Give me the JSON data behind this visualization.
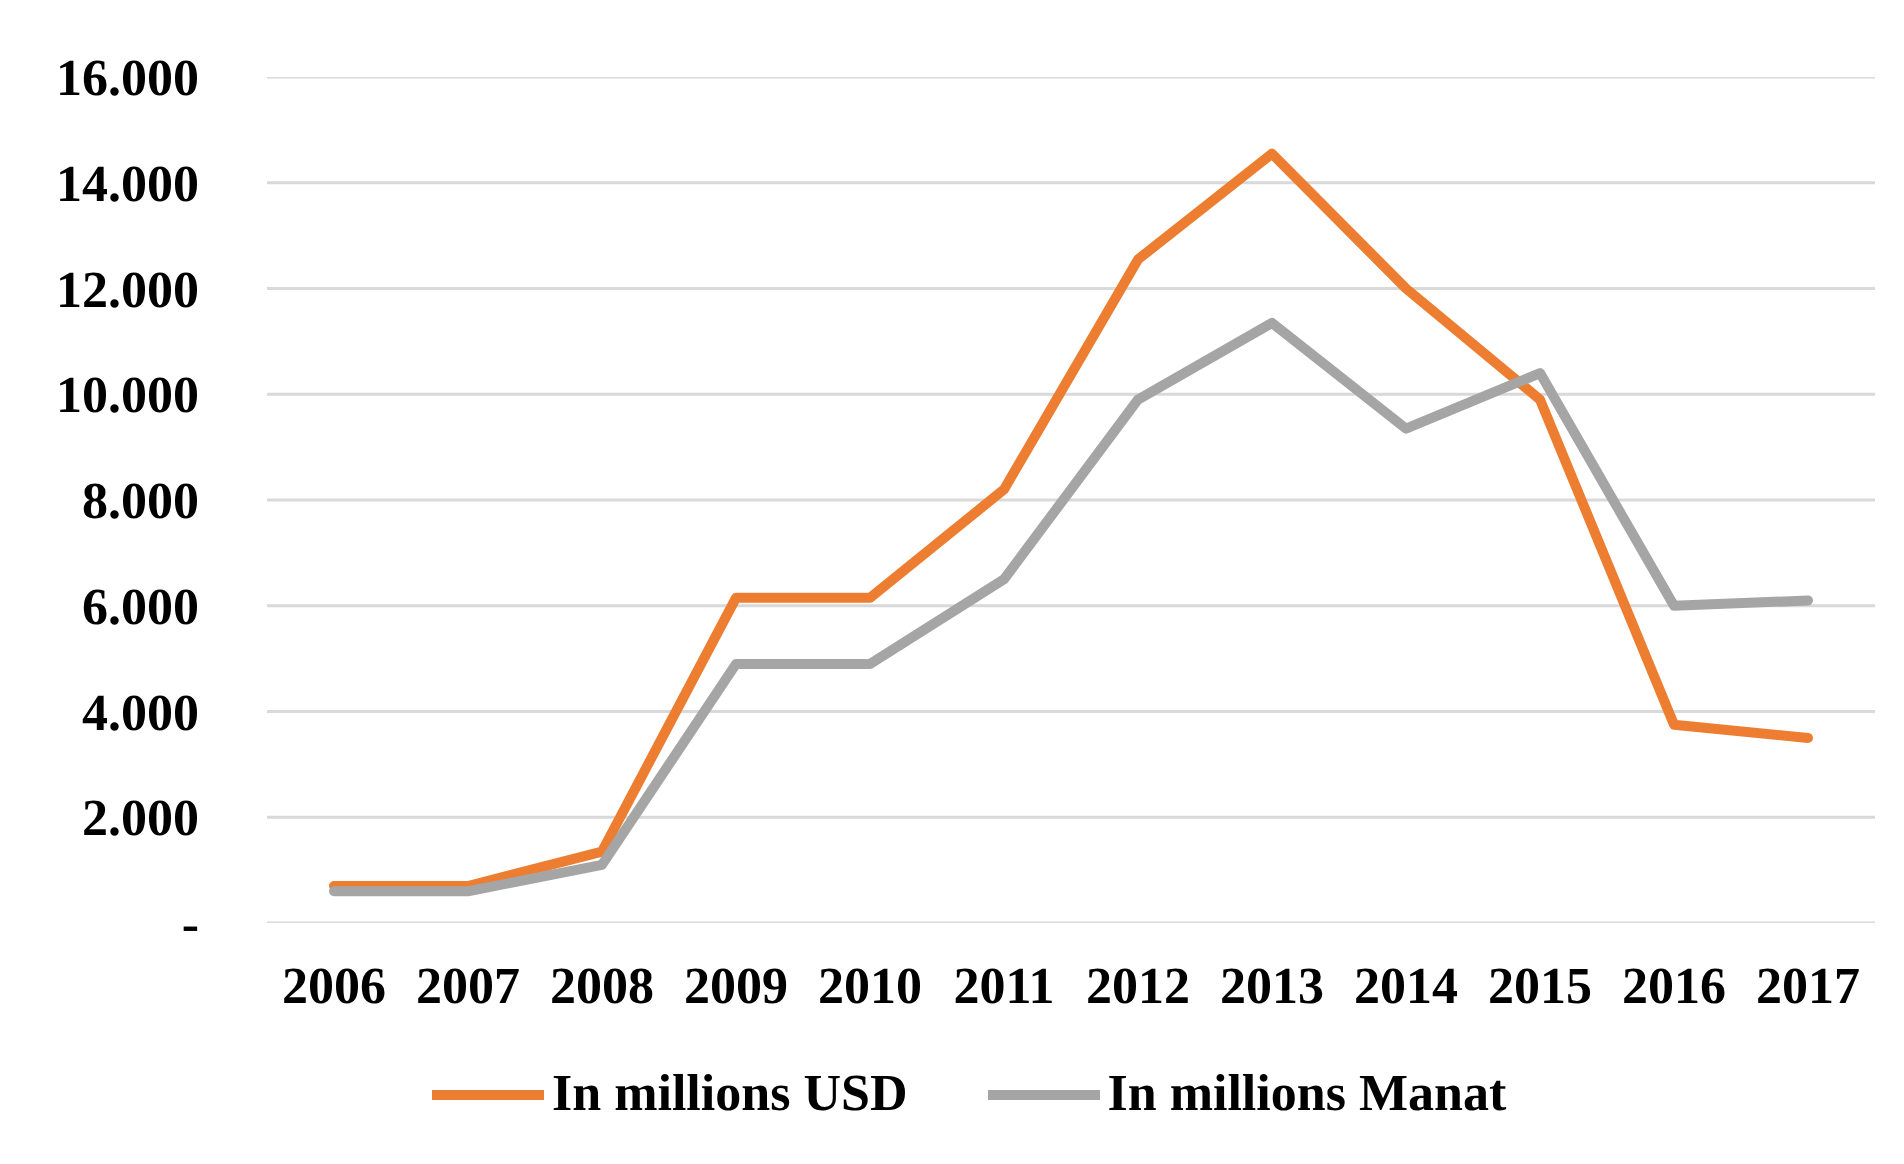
{
  "chart_data": {
    "type": "line",
    "categories": [
      "2006",
      "2007",
      "2008",
      "2009",
      "2010",
      "2011",
      "2012",
      "2013",
      "2014",
      "2015",
      "2016",
      "2017"
    ],
    "series": [
      {
        "name": "In millions USD",
        "color": "#ed7d31",
        "values": [
          700,
          700,
          1350,
          6150,
          6150,
          8200,
          12550,
          14550,
          12000,
          9900,
          3750,
          3500
        ]
      },
      {
        "name": "In millions Manat",
        "color": "#a5a5a5",
        "values": [
          600,
          600,
          1100,
          4900,
          4900,
          6500,
          9900,
          11350,
          9350,
          10400,
          6000,
          6100
        ]
      }
    ],
    "ylim": [
      0,
      16000
    ],
    "yticks": [
      {
        "value": 0,
        "label": "-"
      },
      {
        "value": 2000,
        "label": "2.000"
      },
      {
        "value": 4000,
        "label": "4.000"
      },
      {
        "value": 6000,
        "label": "6.000"
      },
      {
        "value": 8000,
        "label": "8.000"
      },
      {
        "value": 10000,
        "label": "10.000"
      },
      {
        "value": 12000,
        "label": "12.000"
      },
      {
        "value": 14000,
        "label": "14.000"
      },
      {
        "value": 16000,
        "label": "16.000"
      }
    ],
    "grid": "y",
    "legend": "bottom",
    "marker": "none",
    "line_style": "solid"
  }
}
